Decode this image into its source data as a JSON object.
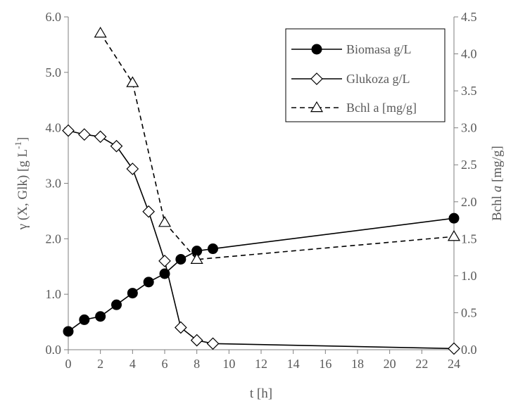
{
  "chart_data": {
    "type": "line",
    "xlabel": "t [h]",
    "ylabel": {
      "prefix": "γ (X, Glk) [g L",
      "sup": "-1",
      "suffix": "]"
    },
    "y2label": {
      "prefix": "Bchl ",
      "italic": "a",
      "suffix": " [mg/g]"
    },
    "xlim": [
      0,
      24
    ],
    "ylim": [
      0,
      6
    ],
    "y2lim": [
      0,
      4.5
    ],
    "x_ticks": [
      "0",
      "2",
      "4",
      "6",
      "8",
      "10",
      "12",
      "14",
      "16",
      "18",
      "20",
      "22",
      "24"
    ],
    "y_ticks": [
      "0.0",
      "1.0",
      "2.0",
      "3.0",
      "4.0",
      "5.0",
      "6.0"
    ],
    "y2_ticks": [
      "0.0",
      "0.5",
      "1.0",
      "1.5",
      "2.0",
      "2.5",
      "3.0",
      "3.5",
      "4.0",
      "4.5"
    ],
    "grid": false,
    "legend_position": "top-right",
    "series": [
      {
        "name": "Biomasa g/L",
        "axis": "left",
        "marker": "circle-filled",
        "line": "solid",
        "x": [
          0,
          1,
          2,
          3,
          4,
          5,
          6,
          7,
          8,
          9,
          24
        ],
        "y": [
          0.33,
          0.54,
          0.6,
          0.81,
          1.02,
          1.22,
          1.37,
          1.63,
          1.78,
          1.82,
          2.37
        ]
      },
      {
        "name": "Glukoza g/L",
        "axis": "left",
        "marker": "diamond-open",
        "line": "solid",
        "x": [
          0,
          1,
          2,
          3,
          4,
          5,
          6,
          7,
          8,
          9,
          24
        ],
        "y": [
          3.95,
          3.88,
          3.84,
          3.67,
          3.26,
          2.49,
          1.6,
          0.4,
          0.17,
          0.11,
          0.02
        ]
      },
      {
        "name": "Bchl a [mg/g]",
        "axis": "right",
        "marker": "triangle-open",
        "line": "dashed",
        "x": [
          2,
          4,
          6,
          8,
          24
        ],
        "y": [
          4.28,
          3.61,
          1.72,
          1.22,
          1.53
        ]
      }
    ]
  }
}
